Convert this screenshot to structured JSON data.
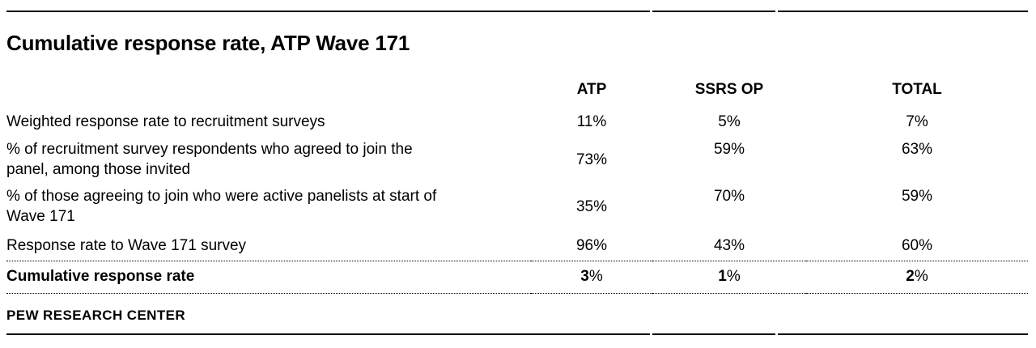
{
  "title": "Cumulative response rate, ATP Wave 171",
  "chart_data": {
    "type": "table",
    "title": "Cumulative response rate, ATP Wave 171",
    "columns": [
      "ATP",
      "SSRS OP",
      "TOTAL"
    ],
    "rows": [
      {
        "label": "Weighted response rate to recruitment surveys",
        "values": [
          "11%",
          "5%",
          "7%"
        ]
      },
      {
        "label": "% of recruitment survey respondents who agreed to join the panel, among those invited",
        "values": [
          "73%",
          "59%",
          "63%"
        ]
      },
      {
        "label": "% of those agreeing to join who were active panelists at start of Wave 171",
        "values": [
          "35%",
          "70%",
          "59%"
        ]
      },
      {
        "label": "Response rate to Wave 171 survey",
        "values": [
          "96%",
          "43%",
          "60%"
        ]
      },
      {
        "label": "Cumulative response rate",
        "values": [
          "3%",
          "1%",
          "2%"
        ],
        "bold": true
      }
    ],
    "source": "PEW RESEARCH CENTER"
  },
  "view": {
    "header": {
      "atp": "ATP",
      "ssrs_op": "SSRS OP",
      "total": "TOTAL"
    },
    "rows": [
      {
        "lines": [
          "Weighted response rate to recruitment surveys"
        ],
        "values": [
          "11%",
          "5%",
          "7%"
        ]
      },
      {
        "lines": [
          "% of recruitment survey respondents who agreed to join the",
          "panel, among those invited"
        ],
        "values": [
          "73%",
          "59%",
          "63%"
        ]
      },
      {
        "lines": [
          "% of those agreeing to join who were active panelists at start of",
          "Wave 171"
        ],
        "values": [
          "35%",
          "70%",
          "59%"
        ]
      },
      {
        "lines": [
          "Response rate to Wave 171 survey"
        ],
        "values": [
          "96%",
          "43%",
          "60%"
        ]
      }
    ],
    "summary": {
      "label": "Cumulative response rate",
      "values": [
        {
          "num": "3",
          "pct": "%"
        },
        {
          "num": "1",
          "pct": "%"
        },
        {
          "num": "2",
          "pct": "%"
        }
      ]
    },
    "brand": "PEW RESEARCH CENTER"
  },
  "colors": {
    "text": "#000000",
    "rule": "#000000",
    "background": "#ffffff"
  }
}
